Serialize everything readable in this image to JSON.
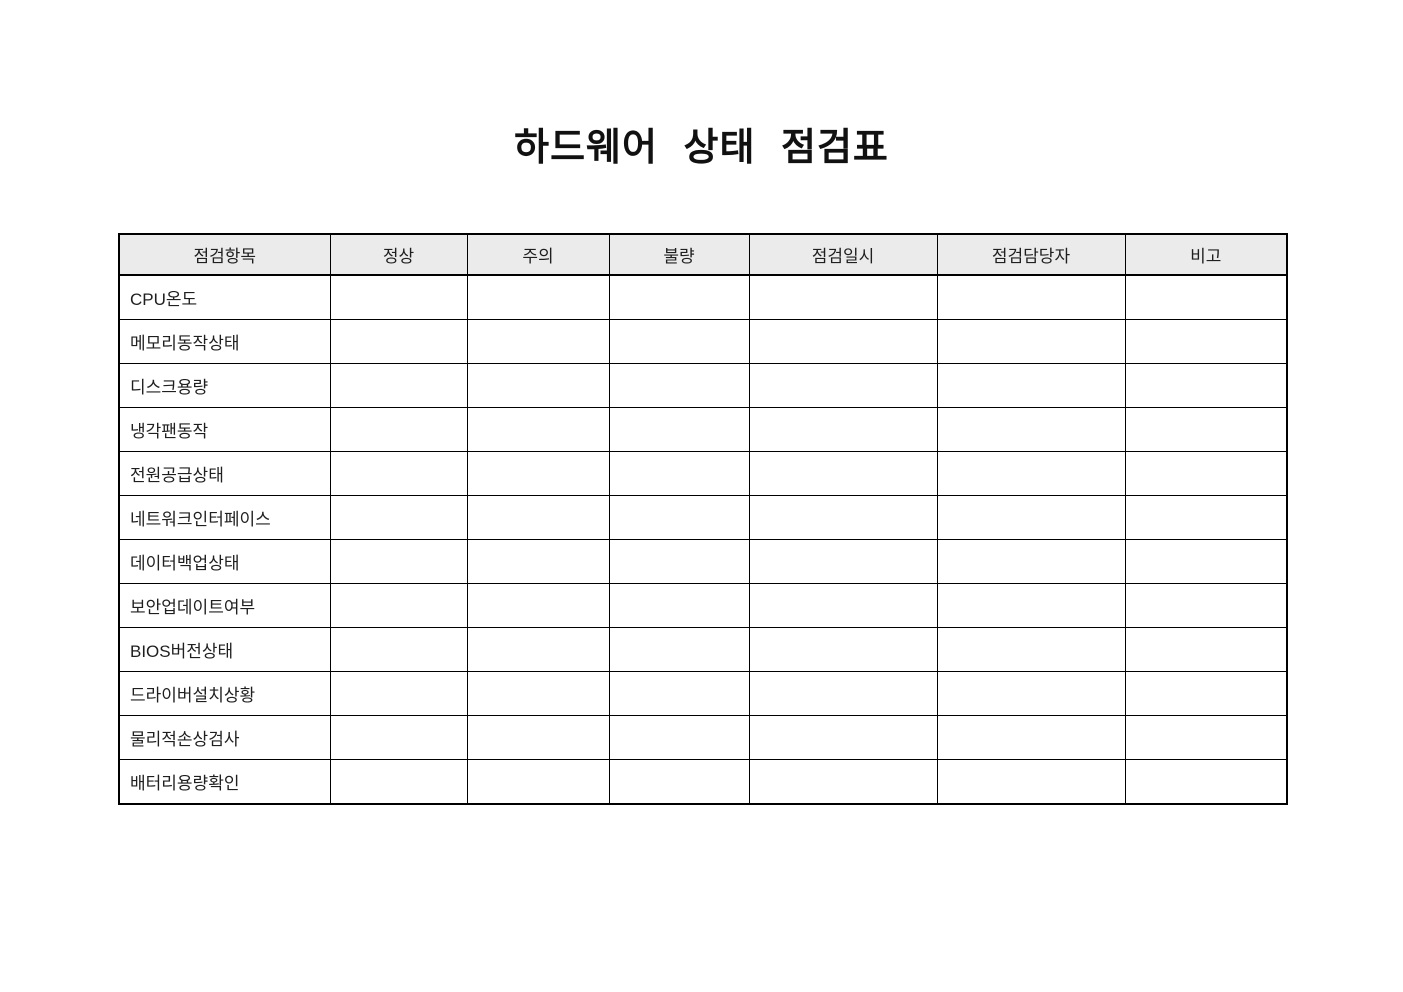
{
  "document": {
    "title": "하드웨어 상태 점검표"
  },
  "table": {
    "headers": [
      "점검항목",
      "정상",
      "주의",
      "불량",
      "점검일시",
      "점검담당자",
      "비고"
    ],
    "rows": [
      {
        "item": "CPU온도",
        "normal": "",
        "caution": "",
        "defect": "",
        "checked_at": "",
        "inspector": "",
        "note": ""
      },
      {
        "item": "메모리동작상태",
        "normal": "",
        "caution": "",
        "defect": "",
        "checked_at": "",
        "inspector": "",
        "note": ""
      },
      {
        "item": "디스크용량",
        "normal": "",
        "caution": "",
        "defect": "",
        "checked_at": "",
        "inspector": "",
        "note": ""
      },
      {
        "item": "냉각팬동작",
        "normal": "",
        "caution": "",
        "defect": "",
        "checked_at": "",
        "inspector": "",
        "note": ""
      },
      {
        "item": "전원공급상태",
        "normal": "",
        "caution": "",
        "defect": "",
        "checked_at": "",
        "inspector": "",
        "note": ""
      },
      {
        "item": "네트워크인터페이스",
        "normal": "",
        "caution": "",
        "defect": "",
        "checked_at": "",
        "inspector": "",
        "note": ""
      },
      {
        "item": "데이터백업상태",
        "normal": "",
        "caution": "",
        "defect": "",
        "checked_at": "",
        "inspector": "",
        "note": ""
      },
      {
        "item": "보안업데이트여부",
        "normal": "",
        "caution": "",
        "defect": "",
        "checked_at": "",
        "inspector": "",
        "note": ""
      },
      {
        "item": "BIOS버전상태",
        "normal": "",
        "caution": "",
        "defect": "",
        "checked_at": "",
        "inspector": "",
        "note": ""
      },
      {
        "item": "드라이버설치상황",
        "normal": "",
        "caution": "",
        "defect": "",
        "checked_at": "",
        "inspector": "",
        "note": ""
      },
      {
        "item": "물리적손상검사",
        "normal": "",
        "caution": "",
        "defect": "",
        "checked_at": "",
        "inspector": "",
        "note": ""
      },
      {
        "item": "배터리용량확인",
        "normal": "",
        "caution": "",
        "defect": "",
        "checked_at": "",
        "inspector": "",
        "note": ""
      }
    ]
  },
  "colors": {
    "header_bg": "#ebebeb",
    "border": "#000000",
    "text": "#1a1a1a"
  }
}
